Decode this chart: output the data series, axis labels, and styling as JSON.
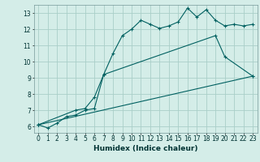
{
  "xlabel": "Humidex (Indice chaleur)",
  "bg_color": "#d4ede8",
  "grid_color": "#aacfc8",
  "line_color": "#006060",
  "xlim": [
    -0.5,
    23.5
  ],
  "ylim": [
    5.6,
    13.5
  ],
  "xticks": [
    0,
    1,
    2,
    3,
    4,
    5,
    6,
    7,
    8,
    9,
    10,
    11,
    12,
    13,
    14,
    15,
    16,
    17,
    18,
    19,
    20,
    21,
    22,
    23
  ],
  "yticks": [
    6,
    7,
    8,
    9,
    10,
    11,
    12,
    13
  ],
  "series1_x": [
    0,
    1,
    2,
    3,
    4,
    5,
    6,
    7,
    8,
    9,
    10,
    11,
    12,
    13,
    14,
    15,
    16,
    17,
    18,
    19,
    20,
    21,
    22,
    23
  ],
  "series1_y": [
    6.1,
    5.9,
    6.2,
    6.6,
    6.7,
    7.0,
    7.1,
    9.2,
    10.5,
    11.6,
    12.0,
    12.55,
    12.3,
    12.05,
    12.2,
    12.45,
    13.3,
    12.75,
    13.2,
    12.55,
    12.2,
    12.3,
    12.2,
    12.3
  ],
  "series2_x": [
    0,
    4,
    5,
    6,
    7,
    19,
    20,
    23
  ],
  "series2_y": [
    6.1,
    7.0,
    7.1,
    7.8,
    9.2,
    11.6,
    10.3,
    9.1
  ],
  "series3_x": [
    0,
    23
  ],
  "series3_y": [
    6.1,
    9.1
  ]
}
